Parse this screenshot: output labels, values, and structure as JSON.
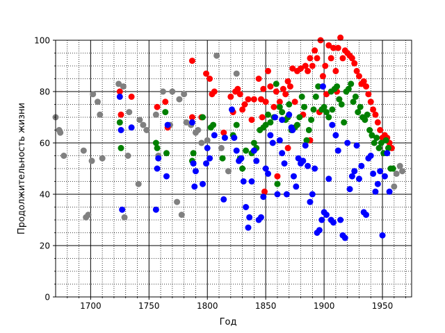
{
  "chart_data": {
    "type": "scatter",
    "xlabel": "Год",
    "ylabel": "Продолжительность жизни",
    "xlim": [
      1670,
      1975
    ],
    "ylim": [
      0,
      100
    ],
    "x_ticks": [
      "1700",
      "1750",
      "1800",
      "1850",
      "1900",
      "1950"
    ],
    "y_ticks": [
      "0",
      "20",
      "40",
      "60",
      "80",
      "100"
    ],
    "grid": "major solid, minor dotted",
    "series": [
      {
        "color": "#808080",
        "points": [
          [
            1670,
            70
          ],
          [
            1673,
            65
          ],
          [
            1674,
            64
          ],
          [
            1677,
            55
          ],
          [
            1694,
            57
          ],
          [
            1696,
            31
          ],
          [
            1698,
            32
          ],
          [
            1701,
            53
          ],
          [
            1702,
            79
          ],
          [
            1706,
            76
          ],
          [
            1708,
            71
          ],
          [
            1710,
            54
          ],
          [
            1724,
            83
          ],
          [
            1728,
            82
          ],
          [
            1729,
            31
          ],
          [
            1732,
            55
          ],
          [
            1733,
            72
          ],
          [
            1741,
            44
          ],
          [
            1742,
            69
          ],
          [
            1745,
            67
          ],
          [
            1748,
            65
          ],
          [
            1756,
            71
          ],
          [
            1758,
            55
          ],
          [
            1762,
            80
          ],
          [
            1768,
            67
          ],
          [
            1770,
            80
          ],
          [
            1774,
            37
          ],
          [
            1776,
            77
          ],
          [
            1778,
            32
          ],
          [
            1780,
            79
          ],
          [
            1782,
            68
          ],
          [
            1786,
            67
          ],
          [
            1790,
            64
          ],
          [
            1792,
            65
          ],
          [
            1795,
            60
          ],
          [
            1800,
            61
          ],
          [
            1808,
            94
          ],
          [
            1812,
            58
          ],
          [
            1818,
            49
          ],
          [
            1825,
            87
          ],
          [
            1960,
            43
          ],
          [
            1962,
            48
          ],
          [
            1965,
            51
          ],
          [
            1967,
            49
          ]
        ]
      },
      {
        "color": "#ff0000",
        "points": [
          [
            1725,
            80
          ],
          [
            1726,
            71
          ],
          [
            1735,
            78
          ],
          [
            1757,
            74
          ],
          [
            1764,
            76
          ],
          [
            1766,
            66
          ],
          [
            1787,
            92
          ],
          [
            1787,
            70
          ],
          [
            1795,
            70
          ],
          [
            1799,
            87
          ],
          [
            1802,
            85
          ],
          [
            1804,
            79
          ],
          [
            1806,
            80
          ],
          [
            1814,
            64
          ],
          [
            1820,
            78
          ],
          [
            1822,
            72
          ],
          [
            1824,
            80
          ],
          [
            1826,
            81
          ],
          [
            1828,
            79
          ],
          [
            1830,
            73
          ],
          [
            1832,
            75
          ],
          [
            1835,
            77
          ],
          [
            1838,
            69
          ],
          [
            1840,
            77
          ],
          [
            1844,
            85
          ],
          [
            1846,
            77
          ],
          [
            1848,
            81
          ],
          [
            1850,
            76
          ],
          [
            1852,
            88
          ],
          [
            1854,
            82
          ],
          [
            1857,
            74
          ],
          [
            1859,
            80
          ],
          [
            1860,
            47
          ],
          [
            1862,
            76
          ],
          [
            1865,
            81
          ],
          [
            1867,
            79
          ],
          [
            1869,
            84
          ],
          [
            1871,
            82
          ],
          [
            1873,
            89
          ],
          [
            1875,
            76
          ],
          [
            1877,
            88
          ],
          [
            1880,
            89
          ],
          [
            1882,
            71
          ],
          [
            1884,
            90
          ],
          [
            1886,
            88
          ],
          [
            1888,
            93
          ],
          [
            1890,
            90
          ],
          [
            1892,
            96
          ],
          [
            1894,
            93
          ],
          [
            1897,
            100
          ],
          [
            1899,
            86
          ],
          [
            1901,
            90
          ],
          [
            1902,
            79
          ],
          [
            1904,
            98
          ],
          [
            1906,
            93
          ],
          [
            1908,
            97
          ],
          [
            1910,
            88
          ],
          [
            1912,
            97
          ],
          [
            1914,
            101
          ],
          [
            1916,
            93
          ],
          [
            1918,
            96
          ],
          [
            1920,
            95
          ],
          [
            1922,
            94
          ],
          [
            1924,
            93
          ],
          [
            1926,
            91
          ],
          [
            1928,
            88
          ],
          [
            1930,
            86
          ],
          [
            1932,
            83
          ],
          [
            1934,
            84
          ],
          [
            1936,
            82
          ],
          [
            1938,
            79
          ],
          [
            1940,
            76
          ],
          [
            1942,
            73
          ],
          [
            1944,
            71
          ],
          [
            1946,
            68
          ],
          [
            1948,
            65
          ],
          [
            1950,
            62
          ],
          [
            1952,
            63
          ],
          [
            1954,
            62
          ],
          [
            1956,
            60
          ],
          [
            1958,
            58
          ],
          [
            1849,
            41
          ],
          [
            1847,
            70
          ],
          [
            1869,
            58
          ],
          [
            1911,
            80
          ],
          [
            1888,
            61
          ],
          [
            1896,
            72
          ]
        ]
      },
      {
        "color": "#008000",
        "points": [
          [
            1725,
            68
          ],
          [
            1726,
            58
          ],
          [
            1756,
            60
          ],
          [
            1757,
            58
          ],
          [
            1764,
            72
          ],
          [
            1765,
            56
          ],
          [
            1787,
            53
          ],
          [
            1788,
            56
          ],
          [
            1796,
            70
          ],
          [
            1803,
            66
          ],
          [
            1805,
            67
          ],
          [
            1813,
            54
          ],
          [
            1822,
            63
          ],
          [
            1825,
            67
          ],
          [
            1828,
            54
          ],
          [
            1830,
            50
          ],
          [
            1833,
            57
          ],
          [
            1838,
            56
          ],
          [
            1840,
            60
          ],
          [
            1842,
            58
          ],
          [
            1845,
            65
          ],
          [
            1848,
            66
          ],
          [
            1850,
            67
          ],
          [
            1852,
            71
          ],
          [
            1854,
            68
          ],
          [
            1857,
            70
          ],
          [
            1859,
            83
          ],
          [
            1860,
            44
          ],
          [
            1862,
            74
          ],
          [
            1864,
            72
          ],
          [
            1867,
            69
          ],
          [
            1869,
            70
          ],
          [
            1870,
            75
          ],
          [
            1872,
            65
          ],
          [
            1875,
            66
          ],
          [
            1877,
            67
          ],
          [
            1879,
            70
          ],
          [
            1881,
            78
          ],
          [
            1883,
            74
          ],
          [
            1885,
            61
          ],
          [
            1887,
            65
          ],
          [
            1889,
            69
          ],
          [
            1891,
            73
          ],
          [
            1893,
            78
          ],
          [
            1895,
            82
          ],
          [
            1898,
            73
          ],
          [
            1900,
            74
          ],
          [
            1902,
            72
          ],
          [
            1904,
            70
          ],
          [
            1906,
            80
          ],
          [
            1907,
            73
          ],
          [
            1909,
            81
          ],
          [
            1911,
            82
          ],
          [
            1913,
            77
          ],
          [
            1915,
            75
          ],
          [
            1917,
            68
          ],
          [
            1919,
            80
          ],
          [
            1921,
            81
          ],
          [
            1923,
            83
          ],
          [
            1925,
            76
          ],
          [
            1927,
            78
          ],
          [
            1929,
            72
          ],
          [
            1931,
            74
          ],
          [
            1933,
            70
          ],
          [
            1935,
            69
          ],
          [
            1937,
            71
          ],
          [
            1939,
            65
          ],
          [
            1941,
            63
          ],
          [
            1943,
            60
          ],
          [
            1945,
            62
          ],
          [
            1947,
            58
          ],
          [
            1949,
            60
          ],
          [
            1951,
            56
          ],
          [
            1953,
            61
          ],
          [
            1955,
            58
          ],
          [
            1957,
            50
          ],
          [
            1959,
            50
          ]
        ]
      },
      {
        "color": "#0000ff",
        "points": [
          [
            1725,
            78
          ],
          [
            1726,
            65
          ],
          [
            1727,
            34
          ],
          [
            1735,
            66
          ],
          [
            1756,
            34
          ],
          [
            1757,
            50
          ],
          [
            1758,
            54
          ],
          [
            1765,
            47
          ],
          [
            1766,
            67
          ],
          [
            1787,
            68
          ],
          [
            1788,
            52
          ],
          [
            1789,
            43
          ],
          [
            1790,
            49
          ],
          [
            1796,
            44
          ],
          [
            1799,
            52
          ],
          [
            1800,
            58
          ],
          [
            1802,
            54
          ],
          [
            1806,
            63
          ],
          [
            1814,
            38
          ],
          [
            1815,
            62
          ],
          [
            1821,
            73
          ],
          [
            1823,
            62
          ],
          [
            1825,
            57
          ],
          [
            1827,
            53
          ],
          [
            1829,
            54
          ],
          [
            1831,
            45
          ],
          [
            1833,
            35
          ],
          [
            1835,
            27
          ],
          [
            1836,
            31
          ],
          [
            1838,
            45
          ],
          [
            1840,
            57
          ],
          [
            1842,
            53
          ],
          [
            1844,
            30
          ],
          [
            1846,
            31
          ],
          [
            1848,
            39
          ],
          [
            1850,
            50
          ],
          [
            1852,
            48
          ],
          [
            1854,
            63
          ],
          [
            1856,
            60
          ],
          [
            1858,
            70
          ],
          [
            1860,
            40
          ],
          [
            1862,
            61
          ],
          [
            1864,
            56
          ],
          [
            1866,
            52
          ],
          [
            1868,
            40
          ],
          [
            1870,
            71
          ],
          [
            1872,
            66
          ],
          [
            1874,
            47
          ],
          [
            1876,
            43
          ],
          [
            1878,
            54
          ],
          [
            1880,
            52
          ],
          [
            1882,
            53
          ],
          [
            1884,
            59
          ],
          [
            1886,
            51
          ],
          [
            1888,
            37
          ],
          [
            1890,
            40
          ],
          [
            1892,
            50
          ],
          [
            1894,
            25
          ],
          [
            1896,
            26
          ],
          [
            1898,
            30
          ],
          [
            1900,
            33
          ],
          [
            1902,
            32
          ],
          [
            1904,
            46
          ],
          [
            1906,
            30
          ],
          [
            1908,
            29
          ],
          [
            1910,
            63
          ],
          [
            1912,
            57
          ],
          [
            1914,
            30
          ],
          [
            1916,
            24
          ],
          [
            1918,
            23
          ],
          [
            1920,
            60
          ],
          [
            1922,
            42
          ],
          [
            1924,
            47
          ],
          [
            1926,
            49
          ],
          [
            1928,
            59
          ],
          [
            1930,
            46
          ],
          [
            1932,
            51
          ],
          [
            1934,
            33
          ],
          [
            1936,
            32
          ],
          [
            1938,
            54
          ],
          [
            1940,
            55
          ],
          [
            1942,
            48
          ],
          [
            1944,
            41
          ],
          [
            1946,
            44
          ],
          [
            1948,
            49
          ],
          [
            1950,
            24
          ],
          [
            1952,
            47
          ],
          [
            1954,
            56
          ],
          [
            1956,
            41
          ],
          [
            1899,
            82
          ],
          [
            1873,
            65
          ],
          [
            1864,
            69
          ],
          [
            1907,
            67
          ]
        ]
      }
    ]
  }
}
